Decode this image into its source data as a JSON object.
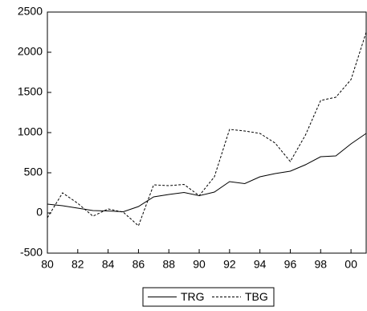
{
  "chart_data": {
    "type": "line",
    "x": [
      1980,
      1981,
      1982,
      1983,
      1984,
      1985,
      1986,
      1987,
      1988,
      1989,
      1990,
      1991,
      1992,
      1993,
      1994,
      1995,
      1996,
      1997,
      1998,
      1999,
      2000,
      2001
    ],
    "series": [
      {
        "name": "TRG",
        "color": "#000000",
        "dash": false,
        "values": [
          110,
          90,
          60,
          30,
          25,
          15,
          80,
          200,
          230,
          255,
          215,
          260,
          390,
          365,
          450,
          490,
          520,
          600,
          700,
          710,
          860,
          990
        ]
      },
      {
        "name": "TBG",
        "color": "#000000",
        "dash": true,
        "values": [
          -60,
          250,
          120,
          -40,
          50,
          10,
          -160,
          350,
          340,
          355,
          215,
          450,
          1040,
          1020,
          990,
          870,
          640,
          970,
          1400,
          1440,
          1660,
          2250
        ]
      }
    ],
    "xlim": [
      1980,
      2001
    ],
    "xticks": [
      {
        "value": 1980,
        "label": "80"
      },
      {
        "value": 1982,
        "label": "82"
      },
      {
        "value": 1984,
        "label": "84"
      },
      {
        "value": 1986,
        "label": "86"
      },
      {
        "value": 1988,
        "label": "88"
      },
      {
        "value": 1990,
        "label": "90"
      },
      {
        "value": 1992,
        "label": "92"
      },
      {
        "value": 1994,
        "label": "94"
      },
      {
        "value": 1996,
        "label": "96"
      },
      {
        "value": 1998,
        "label": "98"
      },
      {
        "value": 2000,
        "label": "00"
      }
    ],
    "ylim": [
      -500,
      2500
    ],
    "yticks": [
      -500,
      0,
      500,
      1000,
      1500,
      2000,
      2500
    ],
    "legend": "bottom"
  }
}
